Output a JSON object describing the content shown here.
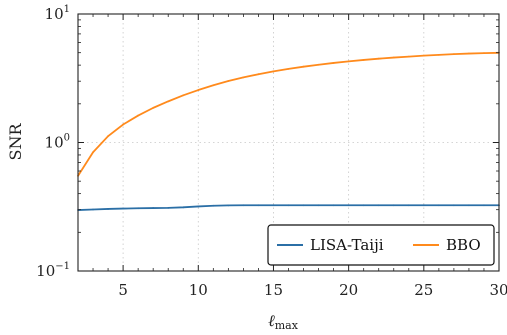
{
  "chart_data": {
    "type": "line",
    "title": "",
    "xlabel": "ℓ",
    "xlabel_sub": "max",
    "ylabel": "SNR",
    "xlim": [
      2,
      30
    ],
    "ylim": [
      0.1,
      10
    ],
    "yscale": "log",
    "grid": true,
    "legend_position": "bottom-right",
    "x_ticks": [
      5,
      10,
      15,
      20,
      25,
      30
    ],
    "y_ticks": [
      {
        "value": 0.1,
        "base": "10",
        "exp": "−1"
      },
      {
        "value": 1,
        "base": "10",
        "exp": "0"
      },
      {
        "value": 10,
        "base": "10",
        "exp": "1"
      }
    ],
    "series": [
      {
        "name": "LISA-Taiji",
        "color": "#2b6fa6",
        "x": [
          2,
          3,
          4,
          5,
          6,
          7,
          8,
          9,
          10,
          11,
          12,
          13,
          14,
          15,
          16,
          17,
          18,
          19,
          20,
          21,
          22,
          23,
          24,
          25,
          26,
          27,
          28,
          29,
          30
        ],
        "values": [
          0.298,
          0.301,
          0.304,
          0.306,
          0.308,
          0.309,
          0.31,
          0.313,
          0.318,
          0.322,
          0.324,
          0.325,
          0.325,
          0.325,
          0.325,
          0.325,
          0.325,
          0.325,
          0.325,
          0.325,
          0.325,
          0.325,
          0.325,
          0.325,
          0.325,
          0.325,
          0.325,
          0.325,
          0.325
        ]
      },
      {
        "name": "BBO",
        "color": "#ff8a1c",
        "x": [
          2,
          3,
          4,
          5,
          6,
          7,
          8,
          9,
          10,
          11,
          12,
          13,
          14,
          15,
          16,
          17,
          18,
          19,
          20,
          21,
          22,
          23,
          24,
          25,
          26,
          27,
          28,
          29,
          30
        ],
        "values": [
          0.55,
          0.84,
          1.12,
          1.38,
          1.62,
          1.86,
          2.09,
          2.33,
          2.56,
          2.79,
          3.01,
          3.21,
          3.4,
          3.58,
          3.74,
          3.89,
          4.03,
          4.16,
          4.28,
          4.39,
          4.49,
          4.58,
          4.66,
          4.74,
          4.81,
          4.87,
          4.92,
          4.96,
          4.99
        ]
      }
    ]
  }
}
